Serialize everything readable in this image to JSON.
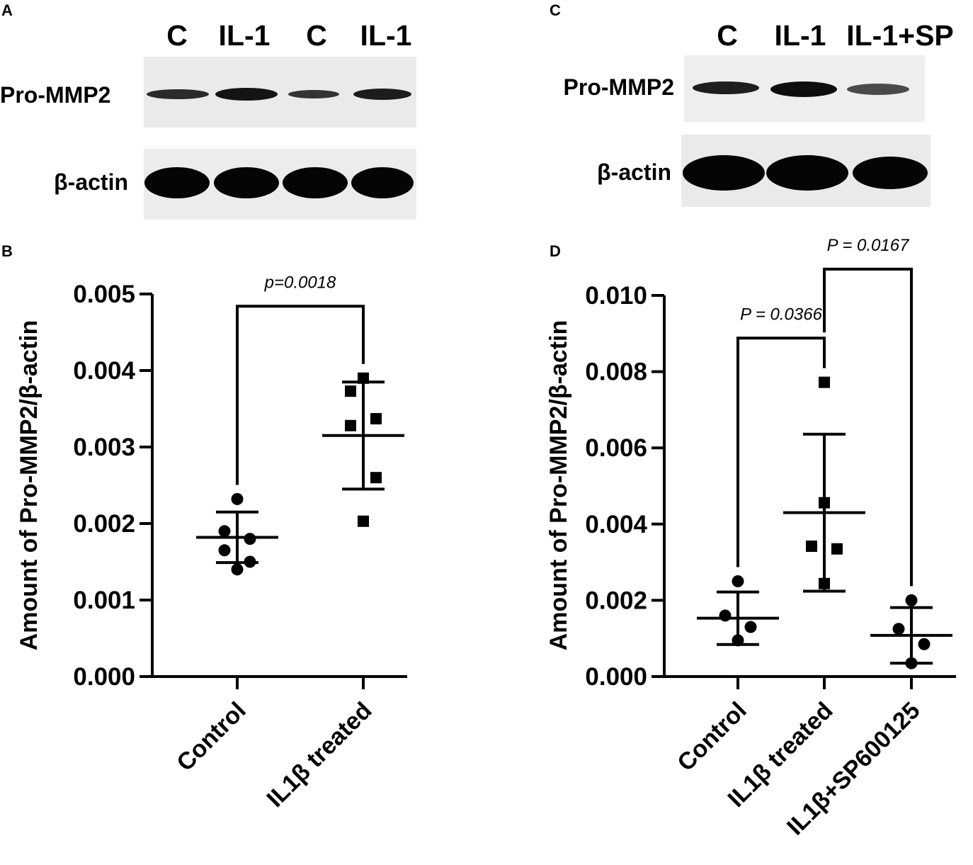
{
  "figure": {
    "panel_a": {
      "letter": "A",
      "lanes": [
        "C",
        "IL-1",
        "C",
        "IL-1"
      ],
      "rows": [
        "Pro-MMP2",
        "β-actin"
      ]
    },
    "panel_c": {
      "letter": "C",
      "lanes": [
        "C",
        "IL-1",
        "IL-1+SP"
      ],
      "rows": [
        "Pro-MMP2",
        "β-actin"
      ]
    }
  },
  "chart_data": [
    {
      "panel": "B",
      "type": "scatter",
      "ylabel": "Amount of Pro-MMP2/β-actin",
      "ylim": [
        0,
        0.005
      ],
      "yticks": [
        "0.000",
        "0.001",
        "0.002",
        "0.003",
        "0.004",
        "0.005"
      ],
      "ytick_values": [
        0,
        0.001,
        0.002,
        0.003,
        0.004,
        0.005
      ],
      "categories": [
        "Control",
        "IL1β treated"
      ],
      "groups": [
        {
          "category": "Control",
          "marker": "circle",
          "points": [
            0.00232,
            0.0019,
            0.0018,
            0.00165,
            0.0015,
            0.0014
          ],
          "mean": 0.00182,
          "sd_upper": 0.00215,
          "sd_lower": 0.00149
        },
        {
          "category": "IL1β treated",
          "marker": "square",
          "points": [
            0.0039,
            0.00373,
            0.00337,
            0.00328,
            0.0026,
            0.00203
          ],
          "mean": 0.00315,
          "sd_upper": 0.00385,
          "sd_lower": 0.00245
        }
      ],
      "comparisons": [
        {
          "from": 0,
          "to": 1,
          "label": "p=0.0018",
          "level": 0.00484
        }
      ],
      "grid": false,
      "legend": "none"
    },
    {
      "panel": "D",
      "type": "scatter",
      "ylabel": "Amount of Pro-MMP2/β-actin",
      "ylim": [
        0,
        0.01
      ],
      "yticks": [
        "0.000",
        "0.002",
        "0.004",
        "0.006",
        "0.008",
        "0.010"
      ],
      "ytick_values": [
        0,
        0.002,
        0.004,
        0.006,
        0.008,
        0.01
      ],
      "categories": [
        "Control",
        "IL1β treated",
        "IL1β+SP600125"
      ],
      "groups": [
        {
          "category": "Control",
          "marker": "circle",
          "points": [
            0.0025,
            0.0016,
            0.0013,
            0.00095
          ],
          "mean": 0.00153,
          "sd_upper": 0.00222,
          "sd_lower": 0.00084
        },
        {
          "category": "IL1β treated",
          "marker": "square",
          "points": [
            0.00772,
            0.00456,
            0.00342,
            0.00335,
            0.00244
          ],
          "mean": 0.0043,
          "sd_upper": 0.00636,
          "sd_lower": 0.00224
        },
        {
          "category": "IL1β+SP600125",
          "marker": "circle",
          "points": [
            0.002,
            0.00125,
            0.00085,
            0.00035
          ],
          "mean": 0.00108,
          "sd_upper": 0.00181,
          "sd_lower": 0.00035
        }
      ],
      "comparisons": [
        {
          "from": 0,
          "to": 1,
          "label": "P = 0.0366",
          "level": 0.00888
        },
        {
          "from": 1,
          "to": 2,
          "label": "P = 0.0167",
          "level": 0.01069
        }
      ],
      "grid": false,
      "legend": "none"
    }
  ]
}
